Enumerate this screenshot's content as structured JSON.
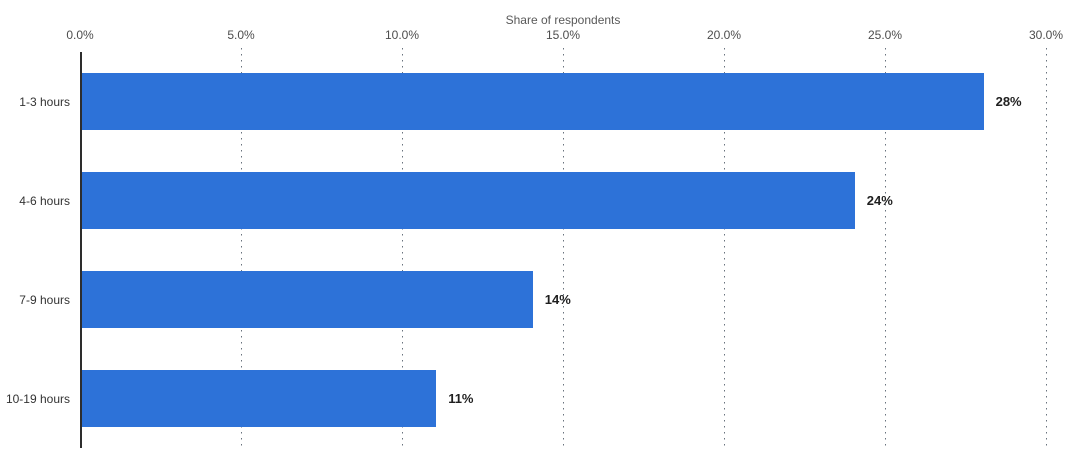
{
  "chart_data": {
    "type": "bar",
    "orientation": "horizontal",
    "title": "Share of respondents",
    "categories": [
      "1-3 hours",
      "4-6 hours",
      "7-9 hours",
      "10-19 hours"
    ],
    "values": [
      28,
      24,
      14,
      11
    ],
    "value_labels": [
      "28%",
      "24%",
      "14%",
      "11%"
    ],
    "x_ticks": [
      {
        "value": 0,
        "label": "0.0%"
      },
      {
        "value": 5,
        "label": "5.0%"
      },
      {
        "value": 10,
        "label": "10.0%"
      },
      {
        "value": 15,
        "label": "15.0%"
      },
      {
        "value": 20,
        "label": "20.0%"
      },
      {
        "value": 25,
        "label": "25.0%"
      },
      {
        "value": 30,
        "label": "30.0%"
      }
    ],
    "xlim": [
      0,
      30
    ],
    "xlabel": "",
    "ylabel": "",
    "legend": "none",
    "grid": "dotted-vertical",
    "bar_color": "#2d72d8",
    "axis_line_color": "#2d2d2d",
    "gridline_color": "#68727d",
    "tick_label_color": "#4d4d4d",
    "title_color": "#595959"
  }
}
